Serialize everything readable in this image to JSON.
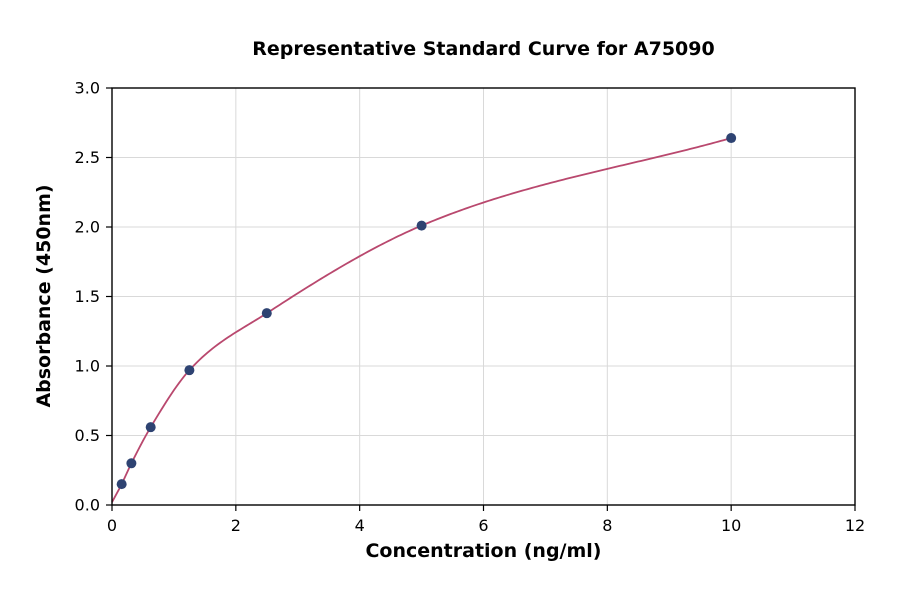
{
  "chart": {
    "title": "Representative Standard Curve for A75090",
    "xlabel": "Concentration (ng/ml)",
    "ylabel": "Absorbance (450nm)"
  },
  "chart_data": {
    "type": "scatter",
    "title": "Representative Standard Curve for A75090",
    "xlabel": "Concentration (ng/ml)",
    "ylabel": "Absorbance (450nm)",
    "x": [
      0.156,
      0.313,
      0.625,
      1.25,
      2.5,
      5,
      10
    ],
    "y": [
      0.15,
      0.3,
      0.56,
      0.97,
      1.38,
      2.01,
      2.64
    ],
    "curve_start": {
      "x": 0,
      "y": 0.02
    },
    "xlim": [
      0,
      12
    ],
    "ylim": [
      0,
      3
    ],
    "xticks": [
      0,
      2,
      4,
      6,
      8,
      10,
      12
    ],
    "yticks": [
      0,
      0.5,
      1,
      1.5,
      2,
      2.5,
      3
    ],
    "grid": true,
    "legend_position": "none",
    "line_color": "#b9486e",
    "point_color": "#2e4372",
    "grid_color": "#d9d9d9",
    "axis_color": "#000000"
  }
}
